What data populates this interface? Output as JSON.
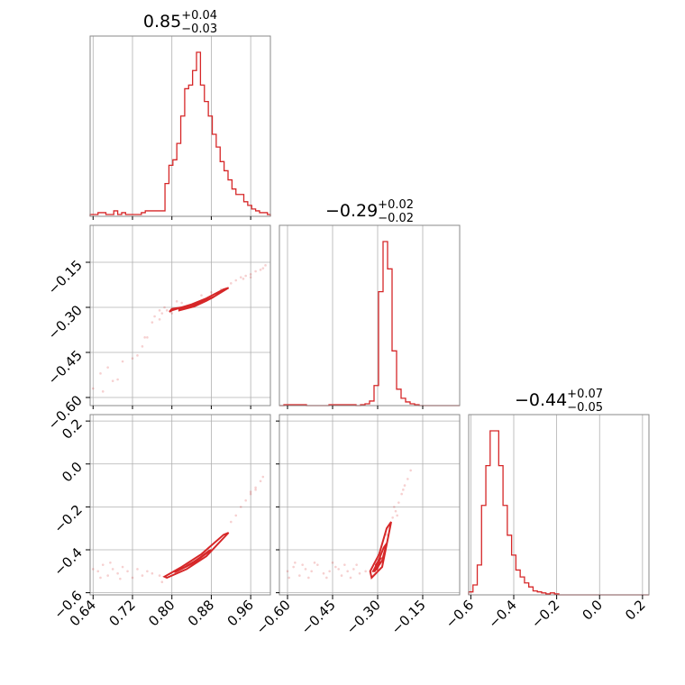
{
  "colors": {
    "series": "#d62728",
    "frame": "#8a8a8a",
    "grid": "#b0b0b0"
  },
  "chart_data": {
    "type": "corner",
    "grid": true,
    "params": [
      {
        "title": {
          "median": "0.85",
          "plus": "+0.04",
          "minus": "−0.03"
        },
        "range": [
          0.634,
          1.0
        ],
        "ticks": [
          {
            "v": 0.64,
            "label": "0.64"
          },
          {
            "v": 0.72,
            "label": "0.72"
          },
          {
            "v": 0.8,
            "label": "0.80"
          },
          {
            "v": 0.88,
            "label": "0.88"
          },
          {
            "v": 0.96,
            "label": "0.96"
          }
        ]
      },
      {
        "title": {
          "median": "−0.29",
          "plus": "+0.02",
          "minus": "−0.02"
        },
        "range": [
          -0.627,
          -0.027
        ],
        "ticks": [
          {
            "v": -0.6,
            "label": "−0.60"
          },
          {
            "v": -0.45,
            "label": "−0.45"
          },
          {
            "v": -0.3,
            "label": "−0.30"
          },
          {
            "v": -0.15,
            "label": "−0.15"
          }
        ]
      },
      {
        "title": {
          "median": "−0.44",
          "plus": "+0.07",
          "minus": "−0.05"
        },
        "range": [
          -0.61,
          0.23
        ],
        "ticks": [
          {
            "v": -0.6,
            "label": "−0.6"
          },
          {
            "v": -0.4,
            "label": "−0.4"
          },
          {
            "v": -0.2,
            "label": "−0.2"
          },
          {
            "v": 0.0,
            "label": "0.0"
          },
          {
            "v": 0.2,
            "label": "0.2"
          }
        ]
      }
    ],
    "histograms": [
      {
        "param": 0,
        "bin_edges": [
          0.634,
          0.642,
          0.65,
          0.658,
          0.666,
          0.674,
          0.682,
          0.69,
          0.698,
          0.706,
          0.714,
          0.722,
          0.73,
          0.738,
          0.746,
          0.754,
          0.762,
          0.77,
          0.778,
          0.786,
          0.794,
          0.802,
          0.81,
          0.818,
          0.826,
          0.834,
          0.842,
          0.85,
          0.858,
          0.866,
          0.874,
          0.882,
          0.89,
          0.898,
          0.906,
          0.914,
          0.922,
          0.93,
          0.938,
          0.946,
          0.954,
          0.962,
          0.97,
          0.978,
          0.986,
          0.994,
          1.0
        ],
        "counts": [
          1,
          1,
          2,
          2,
          1,
          1,
          3,
          1,
          2,
          1,
          1,
          1,
          1,
          2,
          3,
          3,
          3,
          3,
          3,
          18,
          28,
          31,
          40,
          55,
          70,
          72,
          80,
          90,
          72,
          63,
          55,
          45,
          38,
          30,
          25,
          20,
          15,
          12,
          12,
          8,
          6,
          4,
          3,
          2,
          2,
          1
        ]
      },
      {
        "param": 1,
        "bin_edges": [
          -0.627,
          -0.612,
          -0.597,
          -0.582,
          -0.567,
          -0.552,
          -0.537,
          -0.522,
          -0.507,
          -0.492,
          -0.477,
          -0.462,
          -0.447,
          -0.432,
          -0.417,
          -0.402,
          -0.387,
          -0.372,
          -0.357,
          -0.342,
          -0.327,
          -0.312,
          -0.297,
          -0.282,
          -0.267,
          -0.252,
          -0.237,
          -0.222,
          -0.207,
          -0.192,
          -0.177,
          -0.162,
          -0.147,
          -0.132,
          -0.117,
          -0.102,
          -0.087,
          -0.072,
          -0.057,
          -0.042,
          -0.027
        ],
        "counts": [
          0,
          1,
          1,
          1,
          1,
          1,
          0,
          0,
          0,
          0,
          0,
          1,
          1,
          1,
          1,
          1,
          1,
          0,
          1,
          2,
          5,
          22,
          125,
          180,
          150,
          60,
          18,
          8,
          4,
          2,
          1,
          0,
          0,
          0,
          0,
          0,
          0,
          0,
          0,
          0
        ]
      },
      {
        "param": 2,
        "bin_edges": [
          -0.61,
          -0.59,
          -0.57,
          -0.55,
          -0.53,
          -0.51,
          -0.49,
          -0.47,
          -0.45,
          -0.43,
          -0.41,
          -0.39,
          -0.37,
          -0.35,
          -0.33,
          -0.31,
          -0.29,
          -0.27,
          -0.25,
          -0.23,
          -0.21,
          -0.19,
          -0.17,
          -0.15,
          -0.13,
          -0.11,
          -0.09,
          -0.07,
          -0.05,
          -0.03,
          -0.01,
          0.01,
          0.03,
          0.05,
          0.07,
          0.09,
          0.11,
          0.13,
          0.15,
          0.17,
          0.19,
          0.21,
          0.23
        ],
        "counts": [
          3,
          10,
          30,
          90,
          130,
          165,
          165,
          130,
          90,
          60,
          40,
          25,
          18,
          12,
          8,
          4,
          3,
          2,
          1,
          2,
          1,
          0,
          0,
          0,
          0,
          0,
          0,
          0,
          0,
          0,
          0,
          0,
          0,
          0,
          0,
          0,
          0,
          0,
          0,
          0,
          0,
          0
        ]
      }
    ],
    "pairs": [
      {
        "x_param": 0,
        "y_param": 1,
        "contours": [
          [
            [
              0.8,
              -0.305
            ],
            [
              0.84,
              -0.295
            ],
            [
              0.88,
              -0.27
            ],
            [
              0.915,
              -0.235
            ],
            [
              0.905,
              -0.24
            ],
            [
              0.87,
              -0.27
            ],
            [
              0.84,
              -0.29
            ],
            [
              0.8,
              -0.31
            ],
            [
              0.795,
              -0.315
            ],
            [
              0.8,
              -0.305
            ]
          ],
          [
            [
              0.815,
              -0.305
            ],
            [
              0.845,
              -0.292
            ],
            [
              0.875,
              -0.272
            ],
            [
              0.885,
              -0.265
            ],
            [
              0.87,
              -0.278
            ],
            [
              0.845,
              -0.297
            ],
            [
              0.815,
              -0.31
            ],
            [
              0.815,
              -0.305
            ]
          ],
          [
            [
              0.835,
              -0.295
            ],
            [
              0.855,
              -0.285
            ],
            [
              0.872,
              -0.273
            ],
            [
              0.86,
              -0.285
            ],
            [
              0.84,
              -0.298
            ],
            [
              0.835,
              -0.295
            ]
          ]
        ],
        "points": [
          [
            0.655,
            -0.52
          ],
          [
            0.67,
            -0.5
          ],
          [
            0.68,
            -0.545
          ],
          [
            0.7,
            -0.48
          ],
          [
            0.72,
            -0.47
          ],
          [
            0.74,
            -0.43
          ],
          [
            0.75,
            -0.4
          ],
          [
            0.76,
            -0.35
          ],
          [
            0.765,
            -0.33
          ],
          [
            0.775,
            -0.31
          ],
          [
            0.78,
            -0.32
          ],
          [
            0.785,
            -0.3
          ],
          [
            0.79,
            -0.31
          ],
          [
            0.8,
            -0.32
          ],
          [
            0.81,
            -0.28
          ],
          [
            0.82,
            -0.285
          ],
          [
            0.83,
            -0.3
          ],
          [
            0.86,
            -0.26
          ],
          [
            0.88,
            -0.25
          ],
          [
            0.9,
            -0.24
          ],
          [
            0.92,
            -0.22
          ],
          [
            0.93,
            -0.21
          ],
          [
            0.94,
            -0.2
          ],
          [
            0.95,
            -0.195
          ],
          [
            0.96,
            -0.19
          ],
          [
            0.97,
            -0.18
          ],
          [
            0.98,
            -0.175
          ],
          [
            0.99,
            -0.16
          ],
          [
            0.985,
            -0.17
          ],
          [
            0.96,
            -0.2
          ],
          [
            0.945,
            -0.205
          ],
          [
            0.69,
            -0.54
          ],
          [
            0.64,
            -0.57
          ],
          [
            0.66,
            -0.58
          ],
          [
            0.73,
            -0.46
          ],
          [
            0.745,
            -0.4
          ],
          [
            0.775,
            -0.34
          ]
        ]
      },
      {
        "x_param": 0,
        "y_param": 2,
        "contours": [
          [
            [
              0.79,
              -0.53
            ],
            [
              0.83,
              -0.49
            ],
            [
              0.87,
              -0.43
            ],
            [
              0.915,
              -0.32
            ],
            [
              0.905,
              -0.33
            ],
            [
              0.86,
              -0.42
            ],
            [
              0.82,
              -0.48
            ],
            [
              0.785,
              -0.525
            ],
            [
              0.79,
              -0.53
            ]
          ],
          [
            [
              0.81,
              -0.5
            ],
            [
              0.845,
              -0.46
            ],
            [
              0.88,
              -0.4
            ],
            [
              0.875,
              -0.405
            ],
            [
              0.84,
              -0.465
            ],
            [
              0.805,
              -0.505
            ],
            [
              0.81,
              -0.5
            ]
          ],
          [
            [
              0.83,
              -0.475
            ],
            [
              0.86,
              -0.435
            ],
            [
              0.855,
              -0.44
            ],
            [
              0.828,
              -0.48
            ],
            [
              0.83,
              -0.475
            ]
          ]
        ],
        "points": [
          [
            0.65,
            -0.5
          ],
          [
            0.66,
            -0.47
          ],
          [
            0.67,
            -0.52
          ],
          [
            0.68,
            -0.49
          ],
          [
            0.69,
            -0.51
          ],
          [
            0.7,
            -0.48
          ],
          [
            0.71,
            -0.5
          ],
          [
            0.72,
            -0.53
          ],
          [
            0.73,
            -0.49
          ],
          [
            0.74,
            -0.52
          ],
          [
            0.75,
            -0.5
          ],
          [
            0.76,
            -0.51
          ],
          [
            0.64,
            -0.49
          ],
          [
            0.655,
            -0.53
          ],
          [
            0.675,
            -0.46
          ],
          [
            0.695,
            -0.535
          ],
          [
            0.775,
            -0.52
          ],
          [
            0.78,
            -0.55
          ],
          [
            0.92,
            -0.27
          ],
          [
            0.93,
            -0.24
          ],
          [
            0.94,
            -0.2
          ],
          [
            0.95,
            -0.17
          ],
          [
            0.96,
            -0.14
          ],
          [
            0.97,
            -0.11
          ],
          [
            0.98,
            -0.08
          ],
          [
            0.985,
            -0.06
          ],
          [
            0.97,
            -0.12
          ],
          [
            0.96,
            -0.13
          ]
        ]
      },
      {
        "x_param": 1,
        "y_param": 2,
        "contours": [
          [
            [
              -0.32,
              -0.53
            ],
            [
              -0.285,
              -0.48
            ],
            [
              -0.265,
              -0.34
            ],
            [
              -0.255,
              -0.27
            ],
            [
              -0.27,
              -0.3
            ],
            [
              -0.295,
              -0.42
            ],
            [
              -0.325,
              -0.5
            ],
            [
              -0.32,
              -0.53
            ]
          ],
          [
            [
              -0.31,
              -0.5
            ],
            [
              -0.285,
              -0.45
            ],
            [
              -0.27,
              -0.37
            ],
            [
              -0.28,
              -0.39
            ],
            [
              -0.3,
              -0.46
            ],
            [
              -0.315,
              -0.5
            ],
            [
              -0.31,
              -0.5
            ]
          ],
          [
            [
              -0.305,
              -0.48
            ],
            [
              -0.29,
              -0.44
            ],
            [
              -0.292,
              -0.44
            ],
            [
              -0.306,
              -0.47
            ],
            [
              -0.305,
              -0.48
            ]
          ],
          [
            [
              -0.303,
              -0.495
            ],
            [
              -0.292,
              -0.455
            ],
            [
              -0.297,
              -0.47
            ],
            [
              -0.303,
              -0.495
            ]
          ]
        ],
        "points": [
          [
            -0.6,
            -0.5
          ],
          [
            -0.58,
            -0.48
          ],
          [
            -0.56,
            -0.52
          ],
          [
            -0.54,
            -0.49
          ],
          [
            -0.52,
            -0.5
          ],
          [
            -0.5,
            -0.47
          ],
          [
            -0.48,
            -0.51
          ],
          [
            -0.46,
            -0.5
          ],
          [
            -0.44,
            -0.48
          ],
          [
            -0.42,
            -0.52
          ],
          [
            -0.4,
            -0.5
          ],
          [
            -0.38,
            -0.49
          ],
          [
            -0.36,
            -0.51
          ],
          [
            -0.34,
            -0.5
          ],
          [
            -0.595,
            -0.53
          ],
          [
            -0.575,
            -0.46
          ],
          [
            -0.55,
            -0.47
          ],
          [
            -0.53,
            -0.53
          ],
          [
            -0.51,
            -0.46
          ],
          [
            -0.47,
            -0.53
          ],
          [
            -0.45,
            -0.46
          ],
          [
            -0.43,
            -0.49
          ],
          [
            -0.41,
            -0.47
          ],
          [
            -0.39,
            -0.53
          ],
          [
            -0.37,
            -0.47
          ],
          [
            -0.25,
            -0.25
          ],
          [
            -0.24,
            -0.22
          ],
          [
            -0.23,
            -0.18
          ],
          [
            -0.22,
            -0.14
          ],
          [
            -0.21,
            -0.1
          ],
          [
            -0.2,
            -0.07
          ],
          [
            -0.19,
            -0.03
          ],
          [
            -0.245,
            -0.2
          ],
          [
            -0.235,
            -0.24
          ],
          [
            -0.215,
            -0.12
          ],
          [
            -0.26,
            -0.3
          ],
          [
            -0.27,
            -0.33
          ]
        ]
      }
    ]
  }
}
